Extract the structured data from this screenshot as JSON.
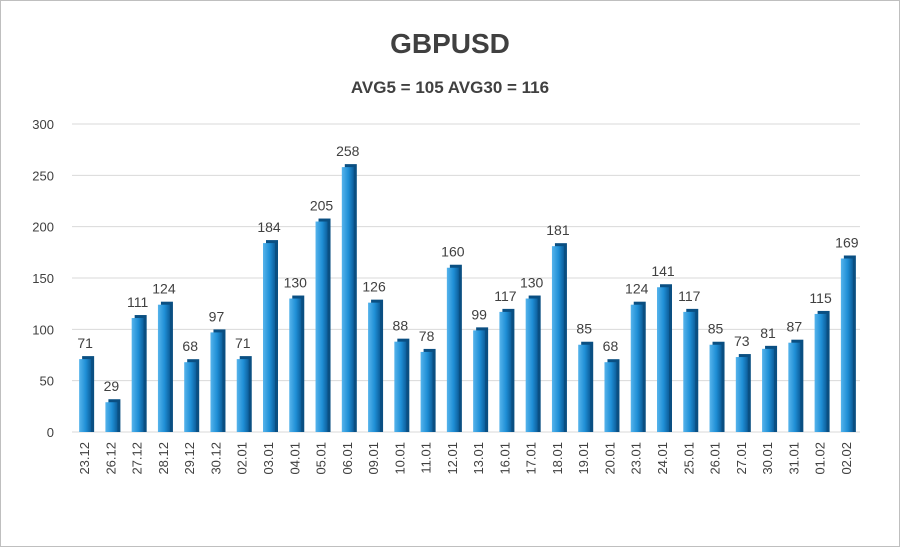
{
  "chart_data": {
    "type": "bar",
    "title": "GBPUSD",
    "subtitle": "AVG5 = 105 AVG30 = 116",
    "xlabel": "",
    "ylabel": "",
    "ylim": [
      0,
      300
    ],
    "yticks": [
      "0",
      "50",
      "100",
      "150",
      "200",
      "250",
      "300"
    ],
    "grid": true,
    "legend": "none",
    "bar_color": "#1f8fd6",
    "categories": [
      "23.12",
      "26.12",
      "27.12",
      "28.12",
      "29.12",
      "30.12",
      "02.01",
      "03.01",
      "04.01",
      "05.01",
      "06.01",
      "09.01",
      "10.01",
      "11.01",
      "12.01",
      "13.01",
      "16.01",
      "17.01",
      "18.01",
      "19.01",
      "20.01",
      "23.01",
      "24.01",
      "25.01",
      "26.01",
      "27.01",
      "30.01",
      "31.01",
      "01.02",
      "02.02"
    ],
    "values": [
      71,
      29,
      111,
      124,
      68,
      97,
      71,
      184,
      130,
      205,
      258,
      126,
      88,
      78,
      160,
      99,
      117,
      130,
      181,
      85,
      68,
      124,
      141,
      117,
      85,
      73,
      81,
      87,
      115,
      169
    ]
  }
}
